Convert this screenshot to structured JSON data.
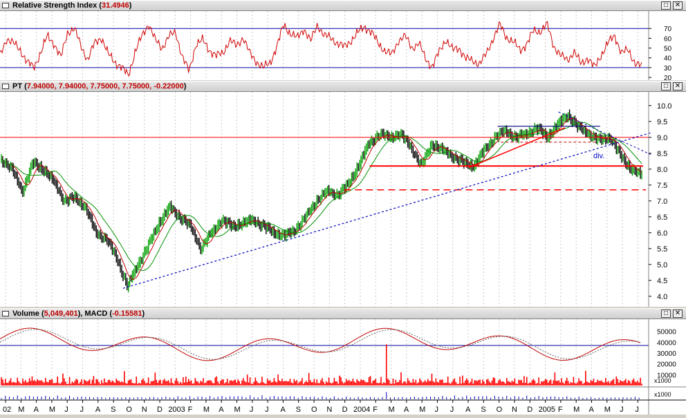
{
  "panes": {
    "rsi": {
      "title_prefix": "Relative Strength Index (",
      "title_value": "31.4946",
      "title_suffix": ")"
    },
    "price": {
      "title_prefix": "PT (",
      "title_value": "7.94000, 7.94000, 7.75000, 7.75000, -0.22000",
      "title_suffix": ")"
    },
    "volume": {
      "title_prefix": "Volume (",
      "title_value": "5,049,401",
      "title_mid": "), MACD (",
      "title_value2": "-0.15581",
      "title_suffix": ")"
    }
  },
  "controls": {
    "restore": "□",
    "close": "✕"
  },
  "annotation": {
    "div_label": "div."
  },
  "colors": {
    "rsi_line": "#d00000",
    "price_up": "#00a000",
    "price_down": "#000000",
    "ma_fast": "#c00000",
    "ma_slow": "#009000",
    "trendline": "#0000c0",
    "support": "#ff0000",
    "volume_bars": "#ff0000"
  },
  "chart_data": [
    {
      "type": "line",
      "title": "Relative Strength Index",
      "current_value": 31.4946,
      "ylim": [
        20,
        80
      ],
      "y_ticks": [
        20,
        30,
        40,
        50,
        60,
        70
      ],
      "reference_lines": [
        30,
        70
      ],
      "series": [
        {
          "name": "RSI",
          "values": [
            42,
            60,
            55,
            48,
            36,
            30,
            45,
            62,
            55,
            40,
            66,
            70,
            52,
            38,
            55,
            61,
            44,
            36,
            30,
            22,
            46,
            62,
            75,
            58,
            50,
            62,
            66,
            41,
            26,
            54,
            58,
            48,
            42,
            45,
            58,
            52,
            61,
            44,
            36,
            30,
            35,
            52,
            74,
            65,
            60,
            70,
            57,
            74,
            63,
            60,
            55,
            51,
            58,
            66,
            72,
            66,
            55,
            47,
            43,
            58,
            62,
            50,
            55,
            39,
            31,
            46,
            59,
            48,
            50,
            39,
            37,
            34,
            44,
            60,
            74,
            61,
            56,
            48,
            54,
            68,
            67,
            74,
            52,
            42,
            38,
            46,
            34,
            40,
            30,
            43,
            55,
            63,
            45,
            48,
            35,
            31
          ]
        }
      ]
    },
    {
      "type": "line",
      "title": "PT",
      "ohlc_latest": {
        "open": 7.94,
        "high": 7.94,
        "low": 7.75,
        "close": 7.75,
        "change": -0.22
      },
      "ylim": [
        3.8,
        10.3
      ],
      "y_ticks": [
        4.0,
        4.5,
        5.0,
        5.5,
        6.0,
        6.5,
        7.0,
        7.5,
        8.0,
        8.5,
        9.0,
        9.5,
        10.0
      ],
      "x_labels": [
        "02",
        "M",
        "A",
        "M",
        "J",
        "J",
        "A",
        "S",
        "O",
        "N",
        "D",
        "2003",
        "F",
        "M",
        "A",
        "M",
        "J",
        "J",
        "A",
        "S",
        "O",
        "N",
        "D",
        "2004",
        "F",
        "M",
        "A",
        "M",
        "J",
        "J",
        "A",
        "S",
        "O",
        "N",
        "D",
        "2005",
        "F",
        "M",
        "A",
        "M",
        "J",
        "J"
      ],
      "series": [
        {
          "values": [
            8.3,
            8.0,
            7.3,
            8.2,
            8.0,
            7.6,
            7.0,
            7.1,
            6.8,
            6.0,
            5.8,
            5.2,
            4.3,
            5.0,
            5.6,
            6.3,
            6.8,
            6.5,
            6.2,
            5.5,
            6.0,
            6.4,
            6.2,
            6.3,
            6.4,
            6.2,
            6.0,
            5.9,
            6.1,
            6.5,
            7.0,
            7.3,
            7.2,
            7.5,
            8.1,
            8.8,
            9.1,
            9.0,
            9.1,
            8.7,
            8.1,
            8.8,
            8.6,
            8.4,
            8.2,
            8.1,
            8.6,
            9.0,
            9.2,
            9.0,
            9.1,
            9.3,
            9.0,
            9.4,
            9.7,
            9.3,
            9.1,
            8.9,
            9.0,
            8.4,
            8.0,
            7.8
          ]
        }
      ],
      "annotations": [
        "div."
      ]
    },
    {
      "type": "bar",
      "title": "Volume",
      "current_volume": 5049401,
      "macd": -0.15581,
      "ylim": [
        0,
        60000
      ],
      "y_ticks": [
        10000,
        20000,
        30000,
        40000,
        50000
      ],
      "scale_label": "x1000"
    }
  ],
  "axis": {
    "x1000_a": "x1000",
    "x1000_b": "x1000"
  }
}
